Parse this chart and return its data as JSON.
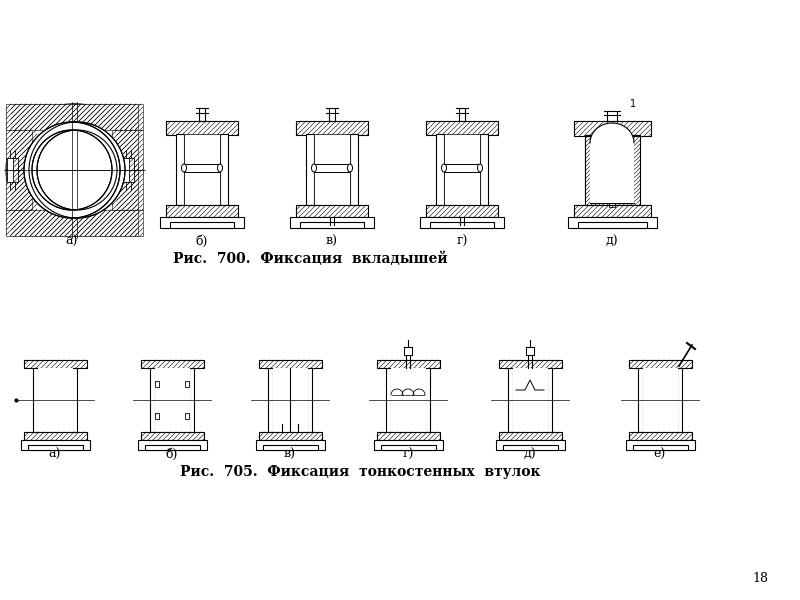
{
  "caption1": "Рис.  700.  Фиксация  вкладышей",
  "caption2": "Рис.  705.  Фиксация  тонкостенных  втулок",
  "page_number": "18",
  "labels_row1": [
    "а)",
    "б)",
    "в)",
    "г)",
    "д)"
  ],
  "labels_row2": [
    "а)",
    "б)",
    "в)",
    "г)",
    "д)",
    "е)"
  ],
  "bg_color": "#ffffff",
  "line_color": "#000000",
  "hatch_color": "#000000",
  "caption_fontsize": 10,
  "label_fontsize": 9,
  "page_fontsize": 9
}
